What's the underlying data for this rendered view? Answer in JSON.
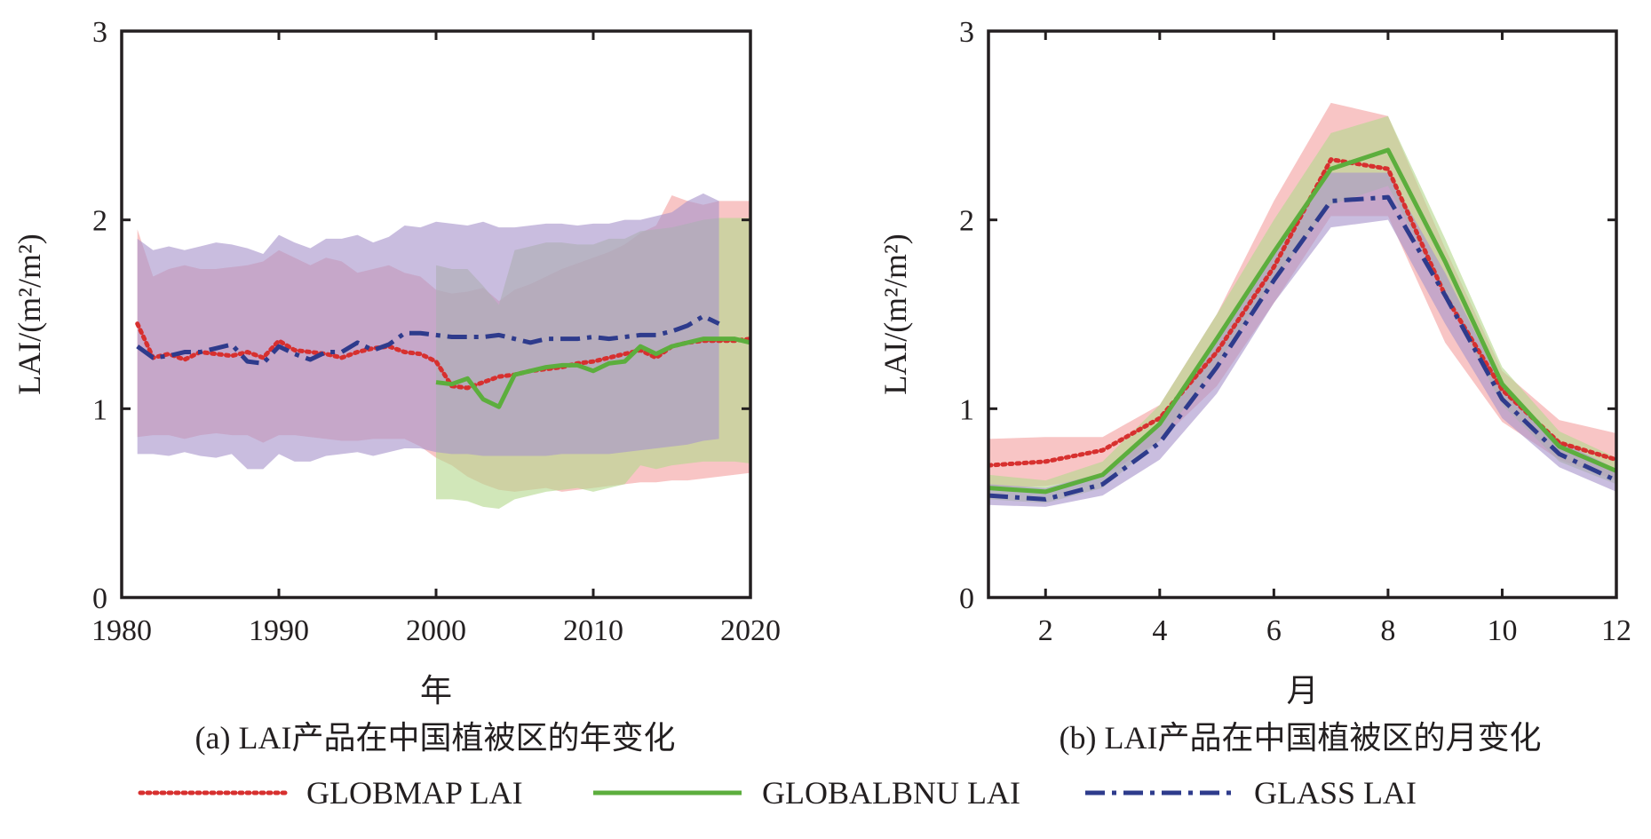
{
  "chart_data": [
    {
      "type": "line",
      "caption": "(a) LAI产品在中国植被区的年变化",
      "xlabel": "年",
      "ylabel": "LAI/(m²/m²)",
      "xlim": [
        1980,
        2020
      ],
      "ylim": [
        0,
        3
      ],
      "xticks": [
        1980,
        1990,
        2000,
        2010,
        2020
      ],
      "yticks": [
        0,
        1,
        2,
        3
      ],
      "grid": false,
      "series": [
        {
          "name": "GLOBMAP LAI",
          "color": "#d7302f",
          "style": "dotted",
          "x": [
            1981,
            1982,
            1983,
            1984,
            1985,
            1986,
            1987,
            1988,
            1989,
            1990,
            1991,
            1992,
            1993,
            1994,
            1995,
            1996,
            1997,
            1998,
            1999,
            2000,
            2001,
            2002,
            2003,
            2004,
            2005,
            2006,
            2007,
            2008,
            2009,
            2010,
            2011,
            2012,
            2013,
            2014,
            2015,
            2016,
            2017,
            2018,
            2019,
            2020
          ],
          "y": [
            1.45,
            1.27,
            1.29,
            1.26,
            1.3,
            1.29,
            1.28,
            1.3,
            1.27,
            1.36,
            1.31,
            1.3,
            1.29,
            1.27,
            1.3,
            1.32,
            1.33,
            1.3,
            1.29,
            1.25,
            1.12,
            1.11,
            1.14,
            1.17,
            1.18,
            1.2,
            1.21,
            1.22,
            1.24,
            1.25,
            1.27,
            1.29,
            1.31,
            1.27,
            1.33,
            1.35,
            1.36,
            1.36,
            1.36,
            1.37
          ],
          "band_upper": [
            1.95,
            1.7,
            1.74,
            1.76,
            1.74,
            1.74,
            1.75,
            1.76,
            1.78,
            1.84,
            1.8,
            1.76,
            1.8,
            1.78,
            1.72,
            1.74,
            1.76,
            1.72,
            1.7,
            1.63,
            1.61,
            1.62,
            1.64,
            1.57,
            1.63,
            1.66,
            1.7,
            1.74,
            1.77,
            1.8,
            1.83,
            1.87,
            1.93,
            1.97,
            2.13,
            2.1,
            2.08,
            2.1,
            2.1,
            2.1
          ],
          "band_lower": [
            0.85,
            0.86,
            0.86,
            0.84,
            0.86,
            0.87,
            0.86,
            0.86,
            0.82,
            0.86,
            0.86,
            0.85,
            0.84,
            0.83,
            0.83,
            0.84,
            0.84,
            0.84,
            0.8,
            0.74,
            0.7,
            0.64,
            0.6,
            0.57,
            0.56,
            0.57,
            0.58,
            0.56,
            0.57,
            0.58,
            0.59,
            0.6,
            0.61,
            0.61,
            0.62,
            0.62,
            0.63,
            0.64,
            0.65,
            0.66
          ]
        },
        {
          "name": "GLOBALBNU LAI",
          "color": "#5cae3d",
          "style": "solid",
          "x": [
            2000,
            2001,
            2002,
            2003,
            2004,
            2005,
            2006,
            2007,
            2008,
            2009,
            2010,
            2011,
            2012,
            2013,
            2014,
            2015,
            2016,
            2017,
            2018,
            2019,
            2020
          ],
          "y": [
            1.14,
            1.13,
            1.16,
            1.05,
            1.01,
            1.18,
            1.2,
            1.22,
            1.23,
            1.23,
            1.2,
            1.24,
            1.25,
            1.33,
            1.29,
            1.33,
            1.35,
            1.37,
            1.37,
            1.37,
            1.35
          ],
          "band_upper": [
            1.76,
            1.74,
            1.74,
            1.65,
            1.55,
            1.84,
            1.86,
            1.88,
            1.88,
            1.87,
            1.87,
            1.9,
            1.9,
            1.94,
            1.95,
            1.96,
            1.98,
            2.0,
            2.01,
            2.01,
            2.01
          ],
          "band_lower": [
            0.52,
            0.52,
            0.51,
            0.48,
            0.47,
            0.52,
            0.54,
            0.56,
            0.57,
            0.58,
            0.56,
            0.58,
            0.6,
            0.7,
            0.68,
            0.7,
            0.71,
            0.72,
            0.72,
            0.72,
            0.71
          ]
        },
        {
          "name": "GLASS LAI",
          "color": "#2e3b8c",
          "style": "dashdot",
          "x": [
            1981,
            1982,
            1983,
            1984,
            1985,
            1986,
            1987,
            1988,
            1989,
            1990,
            1991,
            1992,
            1993,
            1994,
            1995,
            1996,
            1997,
            1998,
            1999,
            2000,
            2001,
            2002,
            2003,
            2004,
            2005,
            2006,
            2007,
            2008,
            2009,
            2010,
            2011,
            2012,
            2013,
            2014,
            2015,
            2016,
            2017,
            2018
          ],
          "y": [
            1.33,
            1.27,
            1.28,
            1.3,
            1.3,
            1.32,
            1.34,
            1.25,
            1.24,
            1.33,
            1.29,
            1.26,
            1.3,
            1.3,
            1.35,
            1.31,
            1.34,
            1.4,
            1.4,
            1.39,
            1.38,
            1.38,
            1.38,
            1.39,
            1.37,
            1.35,
            1.37,
            1.37,
            1.37,
            1.38,
            1.37,
            1.38,
            1.39,
            1.39,
            1.41,
            1.44,
            1.49,
            1.45
          ],
          "band_upper": [
            1.9,
            1.84,
            1.86,
            1.84,
            1.86,
            1.88,
            1.87,
            1.85,
            1.82,
            1.92,
            1.88,
            1.85,
            1.9,
            1.9,
            1.92,
            1.88,
            1.91,
            1.97,
            1.96,
            1.99,
            1.98,
            1.97,
            1.99,
            1.96,
            1.96,
            1.97,
            1.98,
            1.98,
            1.97,
            1.98,
            1.98,
            2.0,
            2.0,
            2.02,
            2.04,
            2.1,
            2.14,
            2.1
          ],
          "band_lower": [
            0.76,
            0.76,
            0.75,
            0.77,
            0.75,
            0.74,
            0.76,
            0.68,
            0.68,
            0.76,
            0.72,
            0.72,
            0.75,
            0.76,
            0.77,
            0.75,
            0.77,
            0.79,
            0.79,
            0.77,
            0.76,
            0.76,
            0.75,
            0.75,
            0.75,
            0.75,
            0.75,
            0.76,
            0.76,
            0.76,
            0.76,
            0.77,
            0.78,
            0.79,
            0.8,
            0.81,
            0.83,
            0.84
          ]
        }
      ]
    },
    {
      "type": "line",
      "caption": "(b) LAI产品在中国植被区的月变化",
      "xlabel": "月",
      "ylabel": "LAI/(m²/m²)",
      "xlim": [
        1,
        12
      ],
      "ylim": [
        0,
        3
      ],
      "xticks": [
        2,
        4,
        6,
        8,
        10,
        12
      ],
      "yticks": [
        0,
        1,
        2,
        3
      ],
      "grid": false,
      "series": [
        {
          "name": "GLOBMAP LAI",
          "color": "#d7302f",
          "style": "dotted",
          "x": [
            1,
            2,
            3,
            4,
            5,
            6,
            7,
            8,
            9,
            10,
            11,
            12
          ],
          "y": [
            0.7,
            0.72,
            0.78,
            0.95,
            1.3,
            1.75,
            2.32,
            2.27,
            1.6,
            1.1,
            0.82,
            0.73
          ],
          "band_upper": [
            0.84,
            0.85,
            0.85,
            1.02,
            1.5,
            2.1,
            2.62,
            2.55,
            1.85,
            1.2,
            0.94,
            0.87
          ],
          "band_lower": [
            0.58,
            0.59,
            0.64,
            0.83,
            1.12,
            1.56,
            2.02,
            2.02,
            1.35,
            0.93,
            0.73,
            0.62
          ]
        },
        {
          "name": "GLOBALBNU LAI",
          "color": "#5cae3d",
          "style": "solid",
          "x": [
            1,
            2,
            3,
            4,
            5,
            6,
            7,
            8,
            9,
            10,
            11,
            12
          ],
          "y": [
            0.58,
            0.56,
            0.65,
            0.92,
            1.37,
            1.83,
            2.27,
            2.37,
            1.78,
            1.13,
            0.8,
            0.67
          ],
          "band_upper": [
            0.65,
            0.62,
            0.72,
            1.02,
            1.5,
            2.0,
            2.46,
            2.55,
            1.9,
            1.22,
            0.88,
            0.74
          ],
          "band_lower": [
            0.52,
            0.5,
            0.58,
            0.83,
            1.23,
            1.68,
            2.08,
            2.18,
            1.6,
            1.02,
            0.72,
            0.6
          ]
        },
        {
          "name": "GLASS LAI",
          "color": "#2e3b8c",
          "style": "dashdot",
          "x": [
            1,
            2,
            3,
            4,
            5,
            6,
            7,
            8,
            9,
            10,
            11,
            12
          ],
          "y": [
            0.54,
            0.52,
            0.6,
            0.82,
            1.22,
            1.68,
            2.1,
            2.12,
            1.6,
            1.05,
            0.76,
            0.62
          ],
          "band_upper": [
            0.6,
            0.58,
            0.66,
            0.91,
            1.35,
            1.82,
            2.25,
            2.25,
            1.72,
            1.12,
            0.83,
            0.68
          ],
          "band_lower": [
            0.49,
            0.48,
            0.54,
            0.73,
            1.08,
            1.56,
            1.96,
            2.0,
            1.45,
            0.95,
            0.69,
            0.56
          ]
        }
      ]
    }
  ],
  "legend": {
    "placement": "bottom",
    "items": [
      {
        "label": "GLOBMAP LAI",
        "color": "#d7302f",
        "style": "dotted"
      },
      {
        "label": "GLOBALBNU LAI",
        "color": "#5cae3d",
        "style": "solid"
      },
      {
        "label": "GLASS LAI",
        "color": "#2e3b8c",
        "style": "dashdot"
      }
    ]
  },
  "band_colors": {
    "GLOBMAP LAI": "#f4a2a2",
    "GLOBALBNU LAI": "#b5d98e",
    "GLASS LAI": "#a895cc"
  }
}
